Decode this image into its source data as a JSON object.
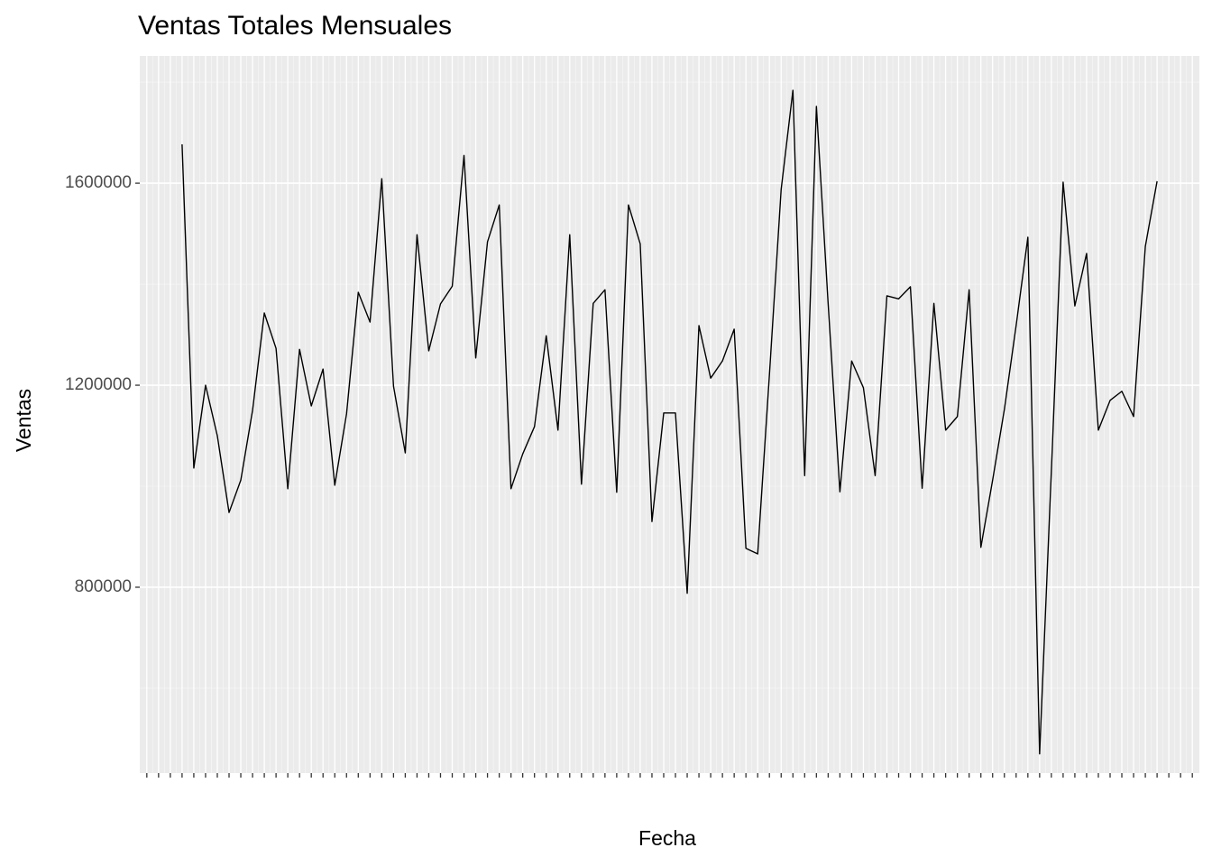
{
  "chart_data": {
    "type": "line",
    "title": "Ventas Totales Mensuales",
    "x_label": "Fecha",
    "y_label": "Ventas",
    "categories": [
      null,
      null,
      null,
      null,
      null,
      null,
      null,
      null,
      null,
      null,
      null,
      null,
      null,
      null,
      null,
      null,
      null,
      null,
      null,
      null,
      null,
      null,
      null,
      null,
      null,
      null,
      null,
      null,
      null,
      null,
      null,
      null,
      null,
      null,
      null,
      null,
      null,
      null,
      null,
      null,
      null,
      null,
      null,
      null,
      null,
      null,
      null,
      null,
      null,
      null,
      null,
      null,
      null,
      null,
      null,
      null,
      null,
      null,
      null,
      null,
      null,
      null,
      null,
      null,
      null,
      null,
      null,
      null,
      null,
      null,
      null,
      null,
      null,
      null,
      null,
      null,
      null,
      null,
      null,
      null,
      null,
      null,
      null,
      null,
      null,
      null,
      null,
      null,
      null,
      null
    ],
    "series": [
      {
        "name": "Ventas",
        "color": "#000000",
        "values": [
          null,
          null,
          null,
          1677000,
          1036000,
          1200000,
          1100000,
          948000,
          1012000,
          1150000,
          1343000,
          1273000,
          995000,
          1271000,
          1159000,
          1232000,
          1002000,
          1143000,
          1384000,
          1325000,
          1609000,
          1198000,
          1066000,
          1498000,
          1268000,
          1361000,
          1396000,
          1655000,
          1254000,
          1484000,
          1557000,
          995000,
          1064000,
          1118000,
          1298000,
          1111000,
          1498000,
          1004000,
          1362000,
          1389000,
          988000,
          1557000,
          1480000,
          930000,
          1145000,
          1145000,
          788000,
          1318000,
          1214000,
          1248000,
          1311000,
          877000,
          866000,
          1221000,
          1588000,
          1784000,
          1021000,
          1752000,
          1361000,
          989000,
          1248000,
          1195000,
          1021000,
          1377000,
          1371000,
          1395000,
          996000,
          1362000,
          1111000,
          1138000,
          1389000,
          879000,
          1012000,
          1152000,
          1318000,
          1493000,
          470000,
          1030000,
          1602000,
          1357000,
          1461000,
          1111000,
          1170000,
          1188000,
          1138000,
          1475000,
          1604000,
          null,
          null,
          null
        ]
      }
    ],
    "ylim": [
      432000,
      1852000
    ],
    "yticks": [
      800000,
      1200000,
      1600000
    ],
    "y_minor_ticks": [
      600000,
      1000000,
      1400000,
      1800000
    ],
    "grid": true
  }
}
